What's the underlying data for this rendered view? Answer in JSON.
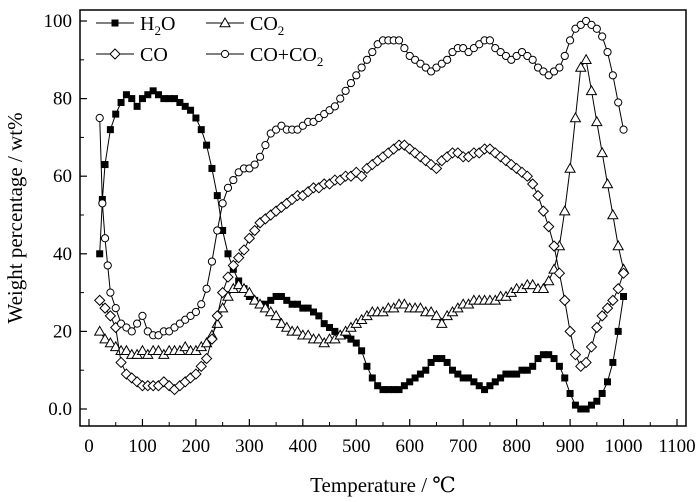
{
  "chart_data": {
    "type": "line",
    "xlabel": "Temperature / ℃",
    "ylabel": "Weight percentage / wt%",
    "xlim": [
      0,
      1100
    ],
    "ylim": [
      0,
      100
    ],
    "x_ticks": [
      "0",
      "100",
      "200",
      "300",
      "400",
      "500",
      "600",
      "700",
      "800",
      "900",
      "1000",
      "1100"
    ],
    "y_ticks": [
      "0.0",
      "20",
      "40",
      "60",
      "80",
      "100"
    ],
    "grid": false,
    "legend_position": "top-left",
    "legend": [
      {
        "main": "H",
        "sub": "2",
        "tail": "O",
        "marker": "filled-square"
      },
      {
        "main": "CO",
        "sub": "2",
        "tail": "",
        "marker": "open-triangle"
      },
      {
        "main": "CO",
        "sub": "",
        "tail": "",
        "marker": "open-diamond"
      },
      {
        "main": "CO+CO",
        "sub": "2",
        "tail": "",
        "marker": "open-circle"
      }
    ],
    "series": [
      {
        "marker": "filled-square",
        "x": [
          20,
          25,
          30,
          40,
          50,
          60,
          70,
          80,
          90,
          100,
          110,
          120,
          130,
          140,
          150,
          160,
          170,
          180,
          190,
          200,
          210,
          220,
          230,
          240,
          250,
          260,
          270,
          280,
          290,
          300,
          310,
          320,
          330,
          340,
          350,
          360,
          370,
          380,
          390,
          400,
          410,
          420,
          430,
          440,
          450,
          460,
          470,
          480,
          490,
          500,
          510,
          520,
          530,
          540,
          550,
          560,
          570,
          580,
          590,
          600,
          610,
          620,
          630,
          640,
          650,
          660,
          670,
          680,
          690,
          700,
          710,
          720,
          730,
          740,
          750,
          760,
          770,
          780,
          790,
          800,
          810,
          820,
          830,
          840,
          850,
          860,
          870,
          880,
          890,
          900,
          910,
          920,
          930,
          940,
          950,
          960,
          970,
          980,
          990,
          1000
        ],
        "y": [
          40,
          54,
          63,
          72,
          76,
          79,
          81,
          80,
          78,
          80,
          81,
          82,
          81,
          80,
          80,
          80,
          79,
          78,
          77,
          75,
          72,
          68,
          62,
          55,
          46,
          40,
          36,
          33,
          31,
          29,
          28,
          27,
          27,
          28,
          29,
          29,
          28,
          27,
          27,
          26,
          26,
          25,
          24,
          22,
          21,
          20,
          19,
          19,
          18,
          17,
          15,
          11,
          8,
          6,
          5,
          5,
          5,
          5,
          6,
          7,
          8,
          9,
          10,
          12,
          13,
          13,
          12,
          10,
          9,
          8,
          8,
          7,
          6,
          5,
          6,
          7,
          8,
          9,
          9,
          9,
          10,
          10,
          11,
          13,
          14,
          14,
          13,
          11,
          8,
          4,
          1,
          0,
          0,
          1,
          2,
          4,
          7,
          12,
          20,
          29
        ]
      },
      {
        "marker": "open-triangle",
        "x": [
          20,
          30,
          40,
          50,
          60,
          70,
          80,
          90,
          100,
          110,
          120,
          130,
          140,
          150,
          160,
          170,
          180,
          190,
          200,
          210,
          220,
          230,
          240,
          250,
          260,
          270,
          280,
          290,
          300,
          310,
          320,
          330,
          340,
          350,
          360,
          370,
          380,
          390,
          400,
          410,
          420,
          430,
          440,
          450,
          460,
          470,
          480,
          490,
          500,
          510,
          520,
          530,
          540,
          550,
          560,
          570,
          580,
          590,
          600,
          610,
          620,
          630,
          640,
          650,
          660,
          670,
          680,
          690,
          700,
          710,
          720,
          730,
          740,
          750,
          760,
          770,
          780,
          790,
          800,
          810,
          820,
          830,
          840,
          850,
          860,
          870,
          880,
          890,
          900,
          910,
          920,
          930,
          940,
          950,
          960,
          970,
          980,
          990,
          1000
        ],
        "y": [
          20,
          18,
          17,
          16,
          15,
          15,
          14,
          14,
          15,
          14,
          15,
          15,
          14,
          15,
          15,
          15,
          16,
          15,
          15,
          16,
          17,
          19,
          22,
          26,
          29,
          31,
          32,
          31,
          30,
          28,
          27,
          26,
          25,
          24,
          22,
          21,
          20,
          20,
          19,
          19,
          18,
          18,
          17,
          18,
          18,
          19,
          20,
          21,
          22,
          23,
          24,
          25,
          25,
          25,
          26,
          26,
          27,
          27,
          26,
          26,
          26,
          25,
          25,
          24,
          22,
          24,
          25,
          26,
          27,
          27,
          28,
          28,
          28,
          28,
          28,
          29,
          29,
          30,
          31,
          31,
          32,
          32,
          31,
          31,
          33,
          36,
          42,
          51,
          62,
          75,
          88,
          90,
          82,
          74,
          66,
          58,
          50,
          42,
          36
        ]
      },
      {
        "marker": "open-diamond",
        "x": [
          20,
          30,
          40,
          50,
          60,
          70,
          80,
          90,
          100,
          110,
          120,
          130,
          140,
          150,
          160,
          170,
          180,
          190,
          200,
          210,
          220,
          230,
          240,
          250,
          260,
          270,
          280,
          290,
          300,
          310,
          320,
          330,
          340,
          350,
          360,
          370,
          380,
          390,
          400,
          410,
          420,
          430,
          440,
          450,
          460,
          470,
          480,
          490,
          500,
          510,
          520,
          530,
          540,
          550,
          560,
          570,
          580,
          590,
          600,
          610,
          620,
          630,
          640,
          650,
          660,
          670,
          680,
          690,
          700,
          710,
          720,
          730,
          740,
          750,
          760,
          770,
          780,
          790,
          800,
          810,
          820,
          830,
          840,
          850,
          860,
          870,
          880,
          890,
          900,
          910,
          920,
          930,
          940,
          950,
          960,
          970,
          980,
          990,
          1000
        ],
        "y": [
          28,
          26,
          24,
          21,
          12,
          9,
          8,
          7,
          6,
          6,
          6,
          6,
          7,
          6,
          5,
          6,
          7,
          8,
          9,
          11,
          13,
          18,
          24,
          30,
          34,
          37,
          39,
          41,
          44,
          46,
          48,
          49,
          50,
          51,
          52,
          53,
          54,
          55,
          55,
          56,
          57,
          57,
          58,
          58,
          59,
          59,
          60,
          60,
          61,
          60,
          62,
          63,
          64,
          65,
          66,
          67,
          68,
          68,
          67,
          66,
          65,
          64,
          63,
          62,
          64,
          65,
          66,
          66,
          65,
          65,
          66,
          66,
          67,
          67,
          66,
          65,
          64,
          63,
          62,
          61,
          60,
          58,
          55,
          51,
          47,
          42,
          35,
          28,
          20,
          14,
          11,
          12,
          16,
          21,
          24,
          26,
          28,
          31,
          35
        ]
      },
      {
        "marker": "open-circle",
        "x": [
          20,
          25,
          30,
          35,
          40,
          50,
          60,
          70,
          80,
          90,
          100,
          110,
          120,
          130,
          140,
          150,
          160,
          170,
          180,
          190,
          200,
          210,
          220,
          230,
          240,
          250,
          260,
          270,
          280,
          290,
          300,
          310,
          320,
          330,
          340,
          350,
          360,
          370,
          380,
          390,
          400,
          410,
          420,
          430,
          440,
          450,
          460,
          470,
          480,
          490,
          500,
          510,
          520,
          530,
          540,
          550,
          560,
          570,
          580,
          590,
          600,
          610,
          620,
          630,
          640,
          650,
          660,
          670,
          680,
          690,
          700,
          710,
          720,
          730,
          740,
          750,
          760,
          770,
          780,
          790,
          800,
          810,
          820,
          830,
          840,
          850,
          860,
          870,
          880,
          890,
          900,
          910,
          920,
          930,
          940,
          950,
          960,
          970,
          980,
          990,
          1000
        ],
        "y": [
          75,
          53,
          44,
          37,
          30,
          26,
          22,
          21,
          20,
          22,
          24,
          20,
          19,
          19,
          20,
          20,
          21,
          22,
          23,
          24,
          25,
          27,
          31,
          38,
          46,
          53,
          57,
          59,
          61,
          62,
          62,
          63,
          65,
          68,
          71,
          72,
          73,
          72,
          72,
          72,
          73,
          74,
          74,
          75,
          76,
          77,
          78,
          80,
          82,
          84,
          86,
          88,
          90,
          92,
          94,
          95,
          95,
          95,
          95,
          93,
          91,
          90,
          89,
          88,
          87,
          88,
          89,
          90,
          92,
          93,
          93,
          92,
          93,
          94,
          95,
          95,
          93,
          92,
          91,
          90,
          91,
          92,
          91,
          90,
          88,
          87,
          86,
          87,
          88,
          91,
          95,
          98,
          99,
          100,
          99,
          98,
          96,
          92,
          86,
          79,
          72
        ]
      }
    ]
  }
}
